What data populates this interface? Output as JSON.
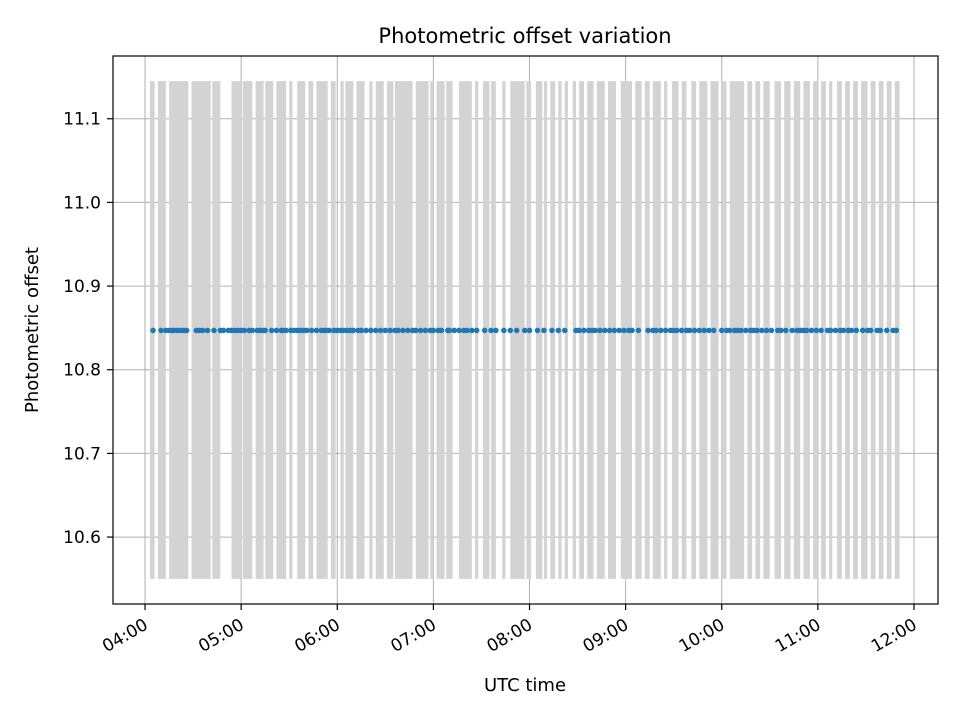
{
  "chart_data": {
    "type": "scatter",
    "title": "Photometric offset variation",
    "xlabel": "UTC time",
    "ylabel": "Photometric offset",
    "x_scale": "time",
    "xlim": [
      "03:40",
      "12:15"
    ],
    "ylim": [
      10.52,
      11.175
    ],
    "grid": true,
    "marker_color": "#1f77b4",
    "band_color": "#d3d3d3",
    "band_y_range": [
      10.55,
      11.145
    ],
    "x_ticks": [
      "04:00",
      "05:00",
      "06:00",
      "07:00",
      "08:00",
      "09:00",
      "10:00",
      "11:00",
      "12:00"
    ],
    "y_ticks": [
      10.6,
      10.7,
      10.8,
      10.9,
      11.0,
      11.1
    ],
    "y_tick_labels": [
      "10.6",
      "10.7",
      "10.8",
      "10.9",
      "11.0",
      "11.1"
    ],
    "excluded_intervals": [
      [
        "04:03",
        "04:06"
      ],
      [
        "04:08",
        "04:13"
      ],
      [
        "04:15",
        "04:27"
      ],
      [
        "04:29",
        "04:36"
      ],
      [
        "04:35",
        "04:41"
      ],
      [
        "04:42",
        "04:47"
      ],
      [
        "04:54",
        "05:00"
      ],
      [
        "05:01",
        "05:07"
      ],
      [
        "05:09",
        "05:14"
      ],
      [
        "05:15",
        "05:20"
      ],
      [
        "05:22",
        "05:28"
      ],
      [
        "05:30",
        "05:32"
      ],
      [
        "05:35",
        "05:40"
      ],
      [
        "05:42",
        "05:45"
      ],
      [
        "05:47",
        "05:54"
      ],
      [
        "05:56",
        "05:59"
      ],
      [
        "06:02",
        "06:04"
      ],
      [
        "06:05",
        "06:10"
      ],
      [
        "06:12",
        "06:17"
      ],
      [
        "06:20",
        "06:22"
      ],
      [
        "06:24",
        "06:29"
      ],
      [
        "06:31",
        "06:35"
      ],
      [
        "06:36",
        "06:47"
      ],
      [
        "06:49",
        "06:57"
      ],
      [
        "06:58",
        "07:00"
      ],
      [
        "07:02",
        "07:07"
      ],
      [
        "07:08",
        "07:12"
      ],
      [
        "07:16",
        "07:24"
      ],
      [
        "07:26",
        "07:28"
      ],
      [
        "07:31",
        "07:35"
      ],
      [
        "07:36",
        "07:39"
      ],
      [
        "07:43",
        "07:45"
      ],
      [
        "07:48",
        "07:57"
      ],
      [
        "07:58",
        "08:01"
      ],
      [
        "08:04",
        "08:08"
      ],
      [
        "08:09",
        "08:11"
      ],
      [
        "08:13",
        "08:16"
      ],
      [
        "08:18",
        "08:20"
      ],
      [
        "08:22",
        "08:24"
      ],
      [
        "08:27",
        "08:29"
      ],
      [
        "08:31",
        "08:34"
      ],
      [
        "08:36",
        "08:40"
      ],
      [
        "08:42",
        "08:47"
      ],
      [
        "08:49",
        "08:54"
      ],
      [
        "08:57",
        "09:04"
      ],
      [
        "09:06",
        "09:10"
      ],
      [
        "09:12",
        "09:15"
      ],
      [
        "09:17",
        "09:22"
      ],
      [
        "09:24",
        "09:26"
      ],
      [
        "09:29",
        "09:33"
      ],
      [
        "09:35",
        "09:38"
      ],
      [
        "09:41",
        "09:44"
      ],
      [
        "09:46",
        "09:51"
      ],
      [
        "09:53",
        "09:58"
      ],
      [
        "10:00",
        "10:03"
      ],
      [
        "10:05",
        "10:14"
      ],
      [
        "10:16",
        "10:19"
      ],
      [
        "10:21",
        "10:24"
      ],
      [
        "10:26",
        "10:30"
      ],
      [
        "10:33",
        "10:37"
      ],
      [
        "10:39",
        "10:43"
      ],
      [
        "10:45",
        "10:49"
      ],
      [
        "10:51",
        "10:55"
      ],
      [
        "10:57",
        "11:00"
      ],
      [
        "11:02",
        "11:05"
      ],
      [
        "11:07",
        "11:09"
      ],
      [
        "11:12",
        "11:15"
      ],
      [
        "11:17",
        "11:20"
      ],
      [
        "11:22",
        "11:25"
      ],
      [
        "11:27",
        "11:31"
      ],
      [
        "11:33",
        "11:36"
      ],
      [
        "11:38",
        "11:41"
      ],
      [
        "11:43",
        "11:46"
      ],
      [
        "11:48",
        "11:51"
      ]
    ],
    "series": [
      {
        "x": [
          "04:05",
          "04:10",
          "04:13",
          "04:15",
          "04:17",
          "04:18",
          "04:20",
          "04:22",
          "04:24",
          "04:26",
          "04:32",
          "04:34",
          "04:36",
          "04:39",
          "04:43",
          "04:47",
          "04:49",
          "04:52",
          "04:54",
          "04:56",
          "04:58",
          "05:00",
          "05:02",
          "05:05",
          "05:07",
          "05:10",
          "05:12",
          "05:14",
          "05:15",
          "05:19",
          "05:22",
          "05:25",
          "05:26",
          "05:28",
          "05:31",
          "05:33",
          "05:35",
          "05:37",
          "05:39",
          "05:41",
          "05:44",
          "05:47",
          "05:50",
          "05:52",
          "05:53",
          "05:55",
          "05:58",
          "06:00",
          "06:02",
          "06:04",
          "06:06",
          "06:08",
          "06:10",
          "06:13",
          "06:15",
          "06:18",
          "06:21",
          "06:24",
          "06:27",
          "06:30",
          "06:33",
          "06:36",
          "06:38",
          "06:41",
          "06:44",
          "06:47",
          "06:49",
          "06:52",
          "06:55",
          "06:58",
          "07:00",
          "07:03",
          "07:05",
          "07:09",
          "07:10",
          "07:13",
          "07:16",
          "07:19",
          "07:21",
          "07:24",
          "07:27",
          "07:32",
          "07:36",
          "07:39",
          "07:44",
          "07:48",
          "07:52",
          "07:57",
          "08:00",
          "08:05",
          "08:09",
          "08:14",
          "08:18",
          "08:22",
          "08:29",
          "08:31",
          "08:34",
          "08:37",
          "08:39",
          "08:41",
          "08:44",
          "08:47",
          "08:50",
          "08:53",
          "08:56",
          "08:59",
          "09:02",
          "09:04",
          "09:08",
          "09:14",
          "09:17",
          "09:19",
          "09:22",
          "09:25",
          "09:28",
          "09:30",
          "09:32",
          "09:35",
          "09:38",
          "09:40",
          "09:43",
          "09:46",
          "09:49",
          "09:52",
          "09:55",
          "10:00",
          "10:03",
          "10:05",
          "10:08",
          "10:10",
          "10:12",
          "10:15",
          "10:18",
          "10:20",
          "10:22",
          "10:25",
          "10:28",
          "10:31",
          "10:35",
          "10:37",
          "10:40",
          "10:44",
          "10:47",
          "10:49",
          "10:51",
          "10:53",
          "10:56",
          "10:59",
          "11:02",
          "11:06",
          "11:08",
          "11:11",
          "11:14",
          "11:16",
          "11:19",
          "11:21",
          "11:24",
          "11:28",
          "11:31",
          "11:33",
          "11:37",
          "11:39",
          "11:43",
          "11:47",
          "11:49"
        ],
        "y_constant": 10.847
      }
    ]
  }
}
